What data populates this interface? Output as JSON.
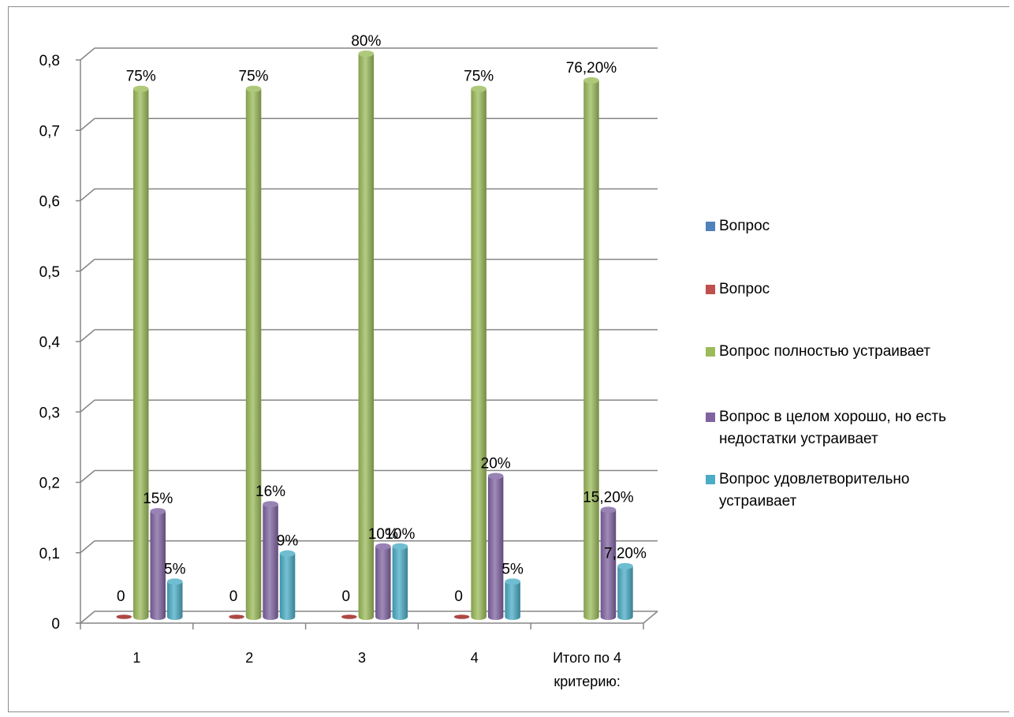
{
  "chart_data": {
    "type": "bar",
    "categories": [
      "1",
      "2",
      "3",
      "4",
      "Итого по 4 критерию:"
    ],
    "ylim": [
      0,
      0.8
    ],
    "yticks": [
      "0",
      "0,1",
      "0,2",
      "0,3",
      "0,4",
      "0,5",
      "0,6",
      "0,7",
      "0,8"
    ],
    "grid": true,
    "legend_position": "right",
    "series": [
      {
        "name": "Вопрос",
        "color": "#4f81bd",
        "values": [
          null,
          null,
          null,
          null,
          null
        ],
        "labels": [
          "",
          "",
          "",
          "",
          ""
        ]
      },
      {
        "name": "Вопрос",
        "color": "#c0504d",
        "values": [
          0,
          0,
          0,
          0,
          null
        ],
        "labels": [
          "0",
          "0",
          "0",
          "0",
          ""
        ]
      },
      {
        "name": "Вопрос полностью устраивает",
        "color": "#9bbb59",
        "values": [
          0.75,
          0.75,
          0.8,
          0.75,
          0.762
        ],
        "labels": [
          "75%",
          "75%",
          "80%",
          "75%",
          "76,20%"
        ]
      },
      {
        "name": "Вопрос в целом хорошо, но есть недостатки устраивает",
        "color": "#8064a2",
        "values": [
          0.15,
          0.16,
          0.1,
          0.2,
          0.152
        ],
        "labels": [
          "15%",
          "16%",
          "10%",
          "20%",
          "15,20%"
        ]
      },
      {
        "name": "Вопрос удовлетворительно устраивает",
        "color": "#4bacc6",
        "values": [
          0.05,
          0.09,
          0.1,
          0.05,
          0.072
        ],
        "labels": [
          "5%",
          "9%",
          "10%",
          "5%",
          "7,20%"
        ]
      }
    ]
  }
}
